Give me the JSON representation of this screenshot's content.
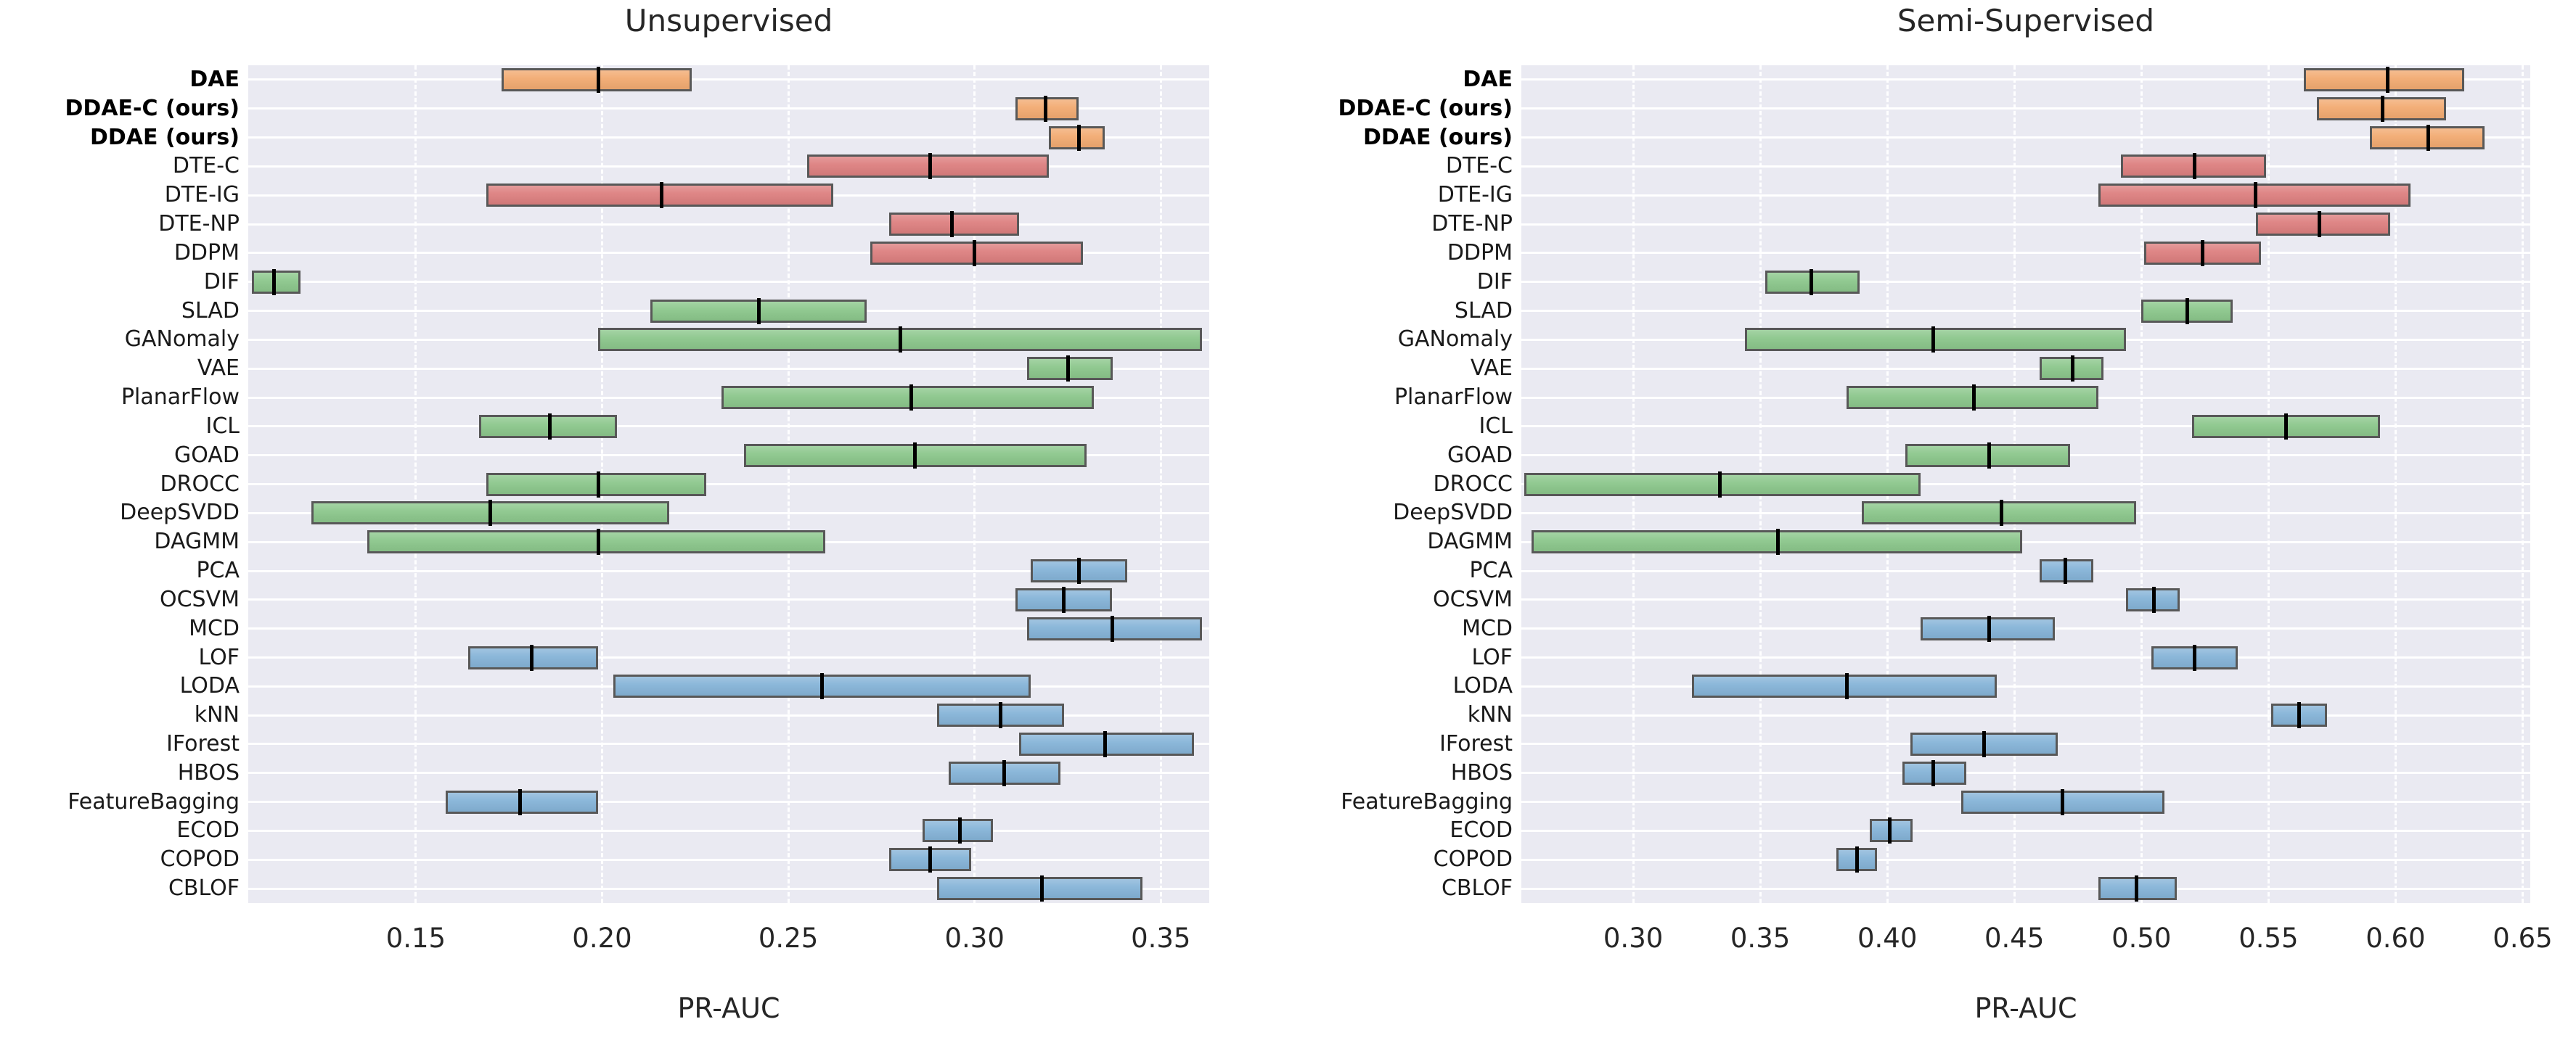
{
  "chart_data": [
    {
      "type": "table",
      "plot_kind": "horizontal-range-box",
      "title": "Unsupervised",
      "xlabel": "PR-AUC",
      "xlim": [
        0.105,
        0.363
      ],
      "xticks": [
        0.15,
        0.2,
        0.25,
        0.3,
        0.35
      ],
      "grid": "horizontal-solid-white, vertical-dashed-white",
      "rows": [
        {
          "label": "DAE",
          "bold": true,
          "group": "ddae",
          "min": 0.173,
          "median": 0.199,
          "max": 0.224
        },
        {
          "label": "DDAE-C (ours)",
          "bold": true,
          "group": "ddae",
          "min": 0.311,
          "median": 0.319,
          "max": 0.328
        },
        {
          "label": "DDAE (ours)",
          "bold": true,
          "group": "ddae",
          "min": 0.32,
          "median": 0.328,
          "max": 0.335
        },
        {
          "label": "DTE-C",
          "bold": false,
          "group": "diffusion",
          "min": 0.255,
          "median": 0.288,
          "max": 0.32
        },
        {
          "label": "DTE-IG",
          "bold": false,
          "group": "diffusion",
          "min": 0.169,
          "median": 0.216,
          "max": 0.262
        },
        {
          "label": "DTE-NP",
          "bold": false,
          "group": "diffusion",
          "min": 0.277,
          "median": 0.294,
          "max": 0.312
        },
        {
          "label": "DDPM",
          "bold": false,
          "group": "diffusion",
          "min": 0.272,
          "median": 0.3,
          "max": 0.329
        },
        {
          "label": "DIF",
          "bold": false,
          "group": "deep",
          "min": 0.106,
          "median": 0.112,
          "max": 0.119
        },
        {
          "label": "SLAD",
          "bold": false,
          "group": "deep",
          "min": 0.213,
          "median": 0.242,
          "max": 0.271
        },
        {
          "label": "GANomaly",
          "bold": false,
          "group": "deep",
          "min": 0.199,
          "median": 0.28,
          "max": 0.361
        },
        {
          "label": "VAE",
          "bold": false,
          "group": "deep",
          "min": 0.314,
          "median": 0.325,
          "max": 0.337
        },
        {
          "label": "PlanarFlow",
          "bold": false,
          "group": "deep",
          "min": 0.232,
          "median": 0.283,
          "max": 0.332
        },
        {
          "label": "ICL",
          "bold": false,
          "group": "deep",
          "min": 0.167,
          "median": 0.186,
          "max": 0.204
        },
        {
          "label": "GOAD",
          "bold": false,
          "group": "deep",
          "min": 0.238,
          "median": 0.284,
          "max": 0.33
        },
        {
          "label": "DROCC",
          "bold": false,
          "group": "deep",
          "min": 0.169,
          "median": 0.199,
          "max": 0.228
        },
        {
          "label": "DeepSVDD",
          "bold": false,
          "group": "deep",
          "min": 0.122,
          "median": 0.17,
          "max": 0.218
        },
        {
          "label": "DAGMM",
          "bold": false,
          "group": "deep",
          "min": 0.137,
          "median": 0.199,
          "max": 0.26
        },
        {
          "label": "PCA",
          "bold": false,
          "group": "shallow",
          "min": 0.315,
          "median": 0.328,
          "max": 0.341
        },
        {
          "label": "OCSVM",
          "bold": false,
          "group": "shallow",
          "min": 0.311,
          "median": 0.324,
          "max": 0.337
        },
        {
          "label": "MCD",
          "bold": false,
          "group": "shallow",
          "min": 0.314,
          "median": 0.337,
          "max": 0.361
        },
        {
          "label": "LOF",
          "bold": false,
          "group": "shallow",
          "min": 0.164,
          "median": 0.181,
          "max": 0.199
        },
        {
          "label": "LODA",
          "bold": false,
          "group": "shallow",
          "min": 0.203,
          "median": 0.259,
          "max": 0.315
        },
        {
          "label": "kNN",
          "bold": false,
          "group": "shallow",
          "min": 0.29,
          "median": 0.307,
          "max": 0.324
        },
        {
          "label": "IForest",
          "bold": false,
          "group": "shallow",
          "min": 0.312,
          "median": 0.335,
          "max": 0.359
        },
        {
          "label": "HBOS",
          "bold": false,
          "group": "shallow",
          "min": 0.293,
          "median": 0.308,
          "max": 0.323
        },
        {
          "label": "FeatureBagging",
          "bold": false,
          "group": "shallow",
          "min": 0.158,
          "median": 0.178,
          "max": 0.199
        },
        {
          "label": "ECOD",
          "bold": false,
          "group": "shallow",
          "min": 0.286,
          "median": 0.296,
          "max": 0.305
        },
        {
          "label": "COPOD",
          "bold": false,
          "group": "shallow",
          "min": 0.277,
          "median": 0.288,
          "max": 0.299
        },
        {
          "label": "CBLOF",
          "bold": false,
          "group": "shallow",
          "min": 0.29,
          "median": 0.318,
          "max": 0.345
        }
      ]
    },
    {
      "type": "table",
      "plot_kind": "horizontal-range-box",
      "title": "Semi-Supervised",
      "xlabel": "PR-AUC",
      "xlim": [
        0.256,
        0.653
      ],
      "xticks": [
        0.3,
        0.35,
        0.4,
        0.45,
        0.5,
        0.55,
        0.6,
        0.65
      ],
      "grid": "horizontal-solid-white, vertical-dashed-white",
      "rows": [
        {
          "label": "DAE",
          "bold": true,
          "group": "ddae",
          "min": 0.564,
          "median": 0.597,
          "max": 0.627
        },
        {
          "label": "DDAE-C (ours)",
          "bold": true,
          "group": "ddae",
          "min": 0.569,
          "median": 0.595,
          "max": 0.62
        },
        {
          "label": "DDAE (ours)",
          "bold": true,
          "group": "ddae",
          "min": 0.59,
          "median": 0.613,
          "max": 0.635
        },
        {
          "label": "DTE-C",
          "bold": false,
          "group": "diffusion",
          "min": 0.492,
          "median": 0.521,
          "max": 0.549
        },
        {
          "label": "DTE-IG",
          "bold": false,
          "group": "diffusion",
          "min": 0.483,
          "median": 0.545,
          "max": 0.606
        },
        {
          "label": "DTE-NP",
          "bold": false,
          "group": "diffusion",
          "min": 0.545,
          "median": 0.57,
          "max": 0.598
        },
        {
          "label": "DDPM",
          "bold": false,
          "group": "diffusion",
          "min": 0.501,
          "median": 0.524,
          "max": 0.547
        },
        {
          "label": "DIF",
          "bold": false,
          "group": "deep",
          "min": 0.352,
          "median": 0.37,
          "max": 0.389
        },
        {
          "label": "SLAD",
          "bold": false,
          "group": "deep",
          "min": 0.5,
          "median": 0.518,
          "max": 0.536
        },
        {
          "label": "GANomaly",
          "bold": false,
          "group": "deep",
          "min": 0.344,
          "median": 0.418,
          "max": 0.494
        },
        {
          "label": "VAE",
          "bold": false,
          "group": "deep",
          "min": 0.46,
          "median": 0.473,
          "max": 0.485
        },
        {
          "label": "PlanarFlow",
          "bold": false,
          "group": "deep",
          "min": 0.384,
          "median": 0.434,
          "max": 0.483
        },
        {
          "label": "ICL",
          "bold": false,
          "group": "deep",
          "min": 0.52,
          "median": 0.557,
          "max": 0.594
        },
        {
          "label": "GOAD",
          "bold": false,
          "group": "deep",
          "min": 0.407,
          "median": 0.44,
          "max": 0.472
        },
        {
          "label": "DROCC",
          "bold": false,
          "group": "deep",
          "min": 0.257,
          "median": 0.334,
          "max": 0.413
        },
        {
          "label": "DeepSVDD",
          "bold": false,
          "group": "deep",
          "min": 0.39,
          "median": 0.445,
          "max": 0.498
        },
        {
          "label": "DAGMM",
          "bold": false,
          "group": "deep",
          "min": 0.26,
          "median": 0.357,
          "max": 0.453
        },
        {
          "label": "PCA",
          "bold": false,
          "group": "shallow",
          "min": 0.46,
          "median": 0.47,
          "max": 0.481
        },
        {
          "label": "OCSVM",
          "bold": false,
          "group": "shallow",
          "min": 0.494,
          "median": 0.505,
          "max": 0.515
        },
        {
          "label": "MCD",
          "bold": false,
          "group": "shallow",
          "min": 0.413,
          "median": 0.44,
          "max": 0.466
        },
        {
          "label": "LOF",
          "bold": false,
          "group": "shallow",
          "min": 0.504,
          "median": 0.521,
          "max": 0.538
        },
        {
          "label": "LODA",
          "bold": false,
          "group": "shallow",
          "min": 0.323,
          "median": 0.384,
          "max": 0.443
        },
        {
          "label": "kNN",
          "bold": false,
          "group": "shallow",
          "min": 0.551,
          "median": 0.562,
          "max": 0.573
        },
        {
          "label": "IForest",
          "bold": false,
          "group": "shallow",
          "min": 0.409,
          "median": 0.438,
          "max": 0.467
        },
        {
          "label": "HBOS",
          "bold": false,
          "group": "shallow",
          "min": 0.406,
          "median": 0.418,
          "max": 0.431
        },
        {
          "label": "FeatureBagging",
          "bold": false,
          "group": "shallow",
          "min": 0.429,
          "median": 0.469,
          "max": 0.509
        },
        {
          "label": "ECOD",
          "bold": false,
          "group": "shallow",
          "min": 0.393,
          "median": 0.401,
          "max": 0.41
        },
        {
          "label": "COPOD",
          "bold": false,
          "group": "shallow",
          "min": 0.38,
          "median": 0.388,
          "max": 0.396
        },
        {
          "label": "CBLOF",
          "bold": false,
          "group": "shallow",
          "min": 0.483,
          "median": 0.498,
          "max": 0.514
        }
      ]
    }
  ],
  "colors": {
    "ddae": "#f2ab72",
    "diffusion": "#dd8080",
    "deep": "#8cc78c",
    "shallow": "#86b4d8",
    "plot_background": "#eaeaf2",
    "grid": "#ffffff",
    "bar_edge": "#585858",
    "median": "#000000",
    "text": "#262626"
  }
}
